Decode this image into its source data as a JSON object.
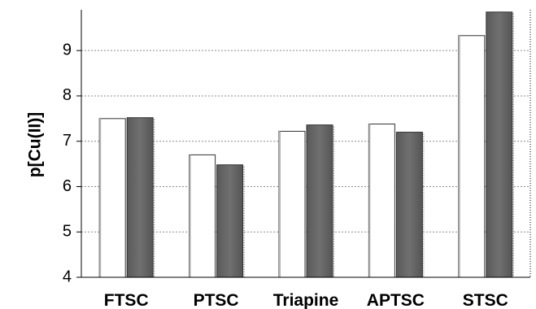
{
  "chart_data": {
    "type": "bar",
    "title": "",
    "xlabel": "",
    "ylabel": "p[Cu(II)]",
    "ylim": [
      4,
      9.9
    ],
    "yticks": [
      4,
      5,
      6,
      7,
      8,
      9
    ],
    "grid": true,
    "categories": [
      "FTSC",
      "PTSC",
      "Triapine",
      "APTSC",
      "STSC"
    ],
    "series": [
      {
        "values": [
          7.5,
          6.7,
          7.22,
          7.38,
          9.33
        ],
        "color": "#ffffff"
      },
      {
        "values": [
          7.52,
          6.48,
          7.36,
          7.2,
          9.85
        ],
        "color": "#666666"
      }
    ]
  }
}
